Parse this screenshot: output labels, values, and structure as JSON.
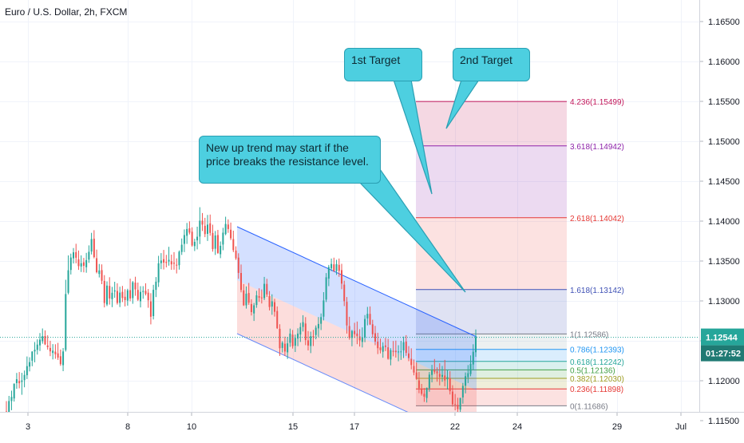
{
  "symbol": {
    "title": "Euro / U.S. Dollar, 2h, FXCM"
  },
  "callouts": [
    {
      "text": "1st Target"
    },
    {
      "text": "2nd Target"
    },
    {
      "text": "New up trend may start if the price breaks the resistance level."
    }
  ],
  "price_scale": {
    "ticks": [
      "1.16500",
      "1.16000",
      "1.15500",
      "1.15000",
      "1.14500",
      "1.14000",
      "1.13500",
      "1.13000",
      "1.12500",
      "1.12000",
      "1.11500"
    ],
    "current_price": "1.12544",
    "countdown": "01:27:52"
  },
  "time_scale": {
    "ticks": [
      "3",
      "8",
      "10",
      "15",
      "17",
      "22",
      "24",
      "29",
      "Jul"
    ]
  },
  "colors": {
    "up": "#26a69a",
    "down": "#ef5350",
    "channel_upper": "#2962ff",
    "channel_lower": "#ef5350",
    "callout": "#4dcfe0",
    "price_label": "#26a69a",
    "countdown_label": "#1f7a73"
  },
  "chart_data": {
    "type": "candlestick",
    "x_ticks": [
      "3",
      "8",
      "10",
      "15",
      "17",
      "22",
      "24",
      "29",
      "Jul"
    ],
    "y_ticks": [
      1.165,
      1.16,
      1.155,
      1.15,
      1.145,
      1.14,
      1.135,
      1.13,
      1.125,
      1.12,
      1.115
    ],
    "ylim": [
      1.11,
      1.168
    ],
    "last_price": 1.12544,
    "fib_levels": [
      {
        "ratio": 0,
        "price": 1.11686,
        "label": "0(1.11686)",
        "color": "#787b86"
      },
      {
        "ratio": 0.236,
        "price": 1.11898,
        "label": "0.236(1.11898)",
        "color": "#e53935"
      },
      {
        "ratio": 0.382,
        "price": 1.1203,
        "label": "0.382(1.12030)",
        "color": "#9e9d24"
      },
      {
        "ratio": 0.5,
        "price": 1.12136,
        "label": "0.5(1.12136)",
        "color": "#43a047"
      },
      {
        "ratio": 0.618,
        "price": 1.12242,
        "label": "0.618(1.12242)",
        "color": "#26a69a"
      },
      {
        "ratio": 0.786,
        "price": 1.12393,
        "label": "0.786(1.12393)",
        "color": "#2196f3"
      },
      {
        "ratio": 1,
        "price": 1.12586,
        "label": "1(1.12586)",
        "color": "#787b86"
      },
      {
        "ratio": 1.618,
        "price": 1.13142,
        "label": "1.618(1.13142)",
        "color": "#3f51b5"
      },
      {
        "ratio": 2.618,
        "price": 1.14042,
        "label": "2.618(1.14042)",
        "color": "#e53935"
      },
      {
        "ratio": 3.618,
        "price": 1.14942,
        "label": "3.618(1.14942)",
        "color": "#8e24aa"
      },
      {
        "ratio": 4.236,
        "price": 1.15499,
        "label": "4.236(1.15499)",
        "color": "#c2185b"
      }
    ],
    "channel": {
      "upper": [
        {
          "x": 297,
          "y": 1.1393
        },
        {
          "x": 597,
          "y": 1.1255
        }
      ],
      "middle": [
        {
          "x": 297,
          "y": 1.1326
        },
        {
          "x": 597,
          "y": 1.1188
        }
      ],
      "lower": [
        {
          "x": 297,
          "y": 1.1259
        },
        {
          "x": 597,
          "y": 1.1121
        }
      ]
    },
    "ohlc": [
      [
        1.11615,
        1.11745,
        1.1142,
        1.1152
      ],
      [
        1.11516,
        1.1181,
        1.11471,
        1.11746
      ],
      [
        1.11746,
        1.11876,
        1.11631,
        1.11797
      ],
      [
        1.11778,
        1.11964,
        1.11739,
        1.11965
      ],
      [
        1.11971,
        1.12098,
        1.11899,
        1.12019
      ],
      [
        1.11997,
        1.12109,
        1.11905,
        1.11969
      ],
      [
        1.11986,
        1.12099,
        1.11824,
        1.12003
      ],
      [
        1.12008,
        1.12128,
        1.11918,
        1.12073
      ],
      [
        1.12069,
        1.12304,
        1.12021,
        1.12183
      ],
      [
        1.12177,
        1.12294,
        1.12117,
        1.12233
      ],
      [
        1.12251,
        1.12369,
        1.12182,
        1.12366
      ],
      [
        1.12367,
        1.12485,
        1.12231,
        1.12388
      ],
      [
        1.12386,
        1.12519,
        1.12328,
        1.12453
      ],
      [
        1.12443,
        1.12597,
        1.12372,
        1.12515
      ],
      [
        1.12495,
        1.12655,
        1.12464,
        1.12558
      ],
      [
        1.1256,
        1.12631,
        1.12447,
        1.12456
      ],
      [
        1.12442,
        1.12569,
        1.12389,
        1.12421
      ],
      [
        1.12411,
        1.12501,
        1.12308,
        1.12368
      ],
      [
        1.12348,
        1.12459,
        1.12267,
        1.12377
      ],
      [
        1.12365,
        1.12457,
        1.12275,
        1.12332
      ],
      [
        1.12343,
        1.12475,
        1.12261,
        1.1229
      ],
      [
        1.12307,
        1.12391,
        1.12187,
        1.12208
      ],
      [
        1.12195,
        1.1241,
        1.1212,
        1.12367
      ],
      [
        1.12386,
        1.13265,
        1.12366,
        1.13086
      ],
      [
        1.13102,
        1.1357,
        1.13082,
        1.13384
      ],
      [
        1.13388,
        1.13593,
        1.13331,
        1.13544
      ],
      [
        1.13534,
        1.13663,
        1.13469,
        1.13609
      ],
      [
        1.13611,
        1.13716,
        1.13471,
        1.13541
      ],
      [
        1.13521,
        1.13632,
        1.13389,
        1.13436
      ],
      [
        1.13431,
        1.13571,
        1.13362,
        1.13472
      ],
      [
        1.13484,
        1.13539,
        1.13358,
        1.1344
      ],
      [
        1.13422,
        1.13602,
        1.13353,
        1.13511
      ],
      [
        1.13518,
        1.13696,
        1.13477,
        1.13615
      ],
      [
        1.13619,
        1.13853,
        1.13582,
        1.13775
      ],
      [
        1.13779,
        1.13886,
        1.13533,
        1.13549
      ],
      [
        1.13535,
        1.13643,
        1.13345,
        1.1336
      ],
      [
        1.13338,
        1.13463,
        1.13294,
        1.13382
      ],
      [
        1.13386,
        1.13458,
        1.1321,
        1.13253
      ],
      [
        1.1325,
        1.13323,
        1.12919,
        1.12974
      ],
      [
        1.12956,
        1.13245,
        1.12935,
        1.13192
      ],
      [
        1.13188,
        1.13297,
        1.12954,
        1.13031
      ],
      [
        1.13022,
        1.13176,
        1.12922,
        1.13102
      ],
      [
        1.13118,
        1.1324,
        1.13039,
        1.13132
      ],
      [
        1.13125,
        1.13221,
        1.12954,
        1.12975
      ],
      [
        1.12976,
        1.13178,
        1.12923,
        1.13104
      ],
      [
        1.13114,
        1.13188,
        1.12985,
        1.13037
      ],
      [
        1.13052,
        1.13147,
        1.12931,
        1.1301
      ],
      [
        1.13004,
        1.13152,
        1.12941,
        1.13133
      ],
      [
        1.13135,
        1.13279,
        1.12996,
        1.13031
      ],
      [
        1.13035,
        1.13249,
        1.12964,
        1.13234
      ],
      [
        1.13229,
        1.13303,
        1.13064,
        1.13145
      ],
      [
        1.13138,
        1.1323,
        1.12999,
        1.13015
      ],
      [
        1.12996,
        1.13185,
        1.12919,
        1.13113
      ],
      [
        1.13113,
        1.13185,
        1.13027,
        1.13124
      ],
      [
        1.13127,
        1.13221,
        1.13069,
        1.13089
      ],
      [
        1.13103,
        1.13149,
        1.12914,
        1.13008
      ],
      [
        1.12994,
        1.13097,
        1.12706,
        1.12802
      ],
      [
        1.1281,
        1.13202,
        1.12768,
        1.13139
      ],
      [
        1.13139,
        1.13299,
        1.13048,
        1.13241
      ],
      [
        1.13233,
        1.13565,
        1.13175,
        1.13471
      ],
      [
        1.13473,
        1.13599,
        1.13398,
        1.13506
      ],
      [
        1.13523,
        1.13639,
        1.13394,
        1.1348
      ],
      [
        1.13488,
        1.13577,
        1.1342,
        1.13476
      ],
      [
        1.13494,
        1.13678,
        1.13442,
        1.13515
      ],
      [
        1.13497,
        1.1358,
        1.1339,
        1.13458
      ],
      [
        1.13478,
        1.13611,
        1.13391,
        1.13467
      ],
      [
        1.13453,
        1.13533,
        1.13344,
        1.13452
      ],
      [
        1.13447,
        1.13632,
        1.13392,
        1.13616
      ],
      [
        1.13613,
        1.13782,
        1.13576,
        1.13704
      ],
      [
        1.13715,
        1.13896,
        1.13612,
        1.13825
      ],
      [
        1.13816,
        1.13977,
        1.13714,
        1.13901
      ],
      [
        1.13909,
        1.13997,
        1.13833,
        1.13856
      ],
      [
        1.13867,
        1.13922,
        1.1368,
        1.13695
      ],
      [
        1.13687,
        1.13779,
        1.13625,
        1.1374
      ],
      [
        1.13759,
        1.1393,
        1.13646,
        1.13804
      ],
      [
        1.13806,
        1.14174,
        1.13712,
        1.14005
      ],
      [
        1.14005,
        1.14101,
        1.13876,
        1.13956
      ],
      [
        1.13941,
        1.14041,
        1.13799,
        1.13837
      ],
      [
        1.1384,
        1.14078,
        1.13751,
        1.13956
      ],
      [
        1.13972,
        1.14082,
        1.13817,
        1.13852
      ],
      [
        1.13851,
        1.13955,
        1.13617,
        1.13649
      ],
      [
        1.13654,
        1.13876,
        1.13576,
        1.1382
      ],
      [
        1.13825,
        1.1389,
        1.13589,
        1.13601
      ],
      [
        1.13585,
        1.13745,
        1.13536,
        1.13691
      ],
      [
        1.13706,
        1.13916,
        1.13635,
        1.13855
      ],
      [
        1.13838,
        1.14055,
        1.13823,
        1.13964
      ],
      [
        1.13957,
        1.14021,
        1.13853,
        1.13901
      ],
      [
        1.13892,
        1.13982,
        1.13762,
        1.13785
      ],
      [
        1.13775,
        1.1388,
        1.13611,
        1.13636
      ],
      [
        1.13631,
        1.13684,
        1.13514,
        1.13534
      ],
      [
        1.13543,
        1.13597,
        1.13277,
        1.13351
      ],
      [
        1.1335,
        1.13456,
        1.13107,
        1.13137
      ],
      [
        1.13132,
        1.13211,
        1.12937,
        1.12945
      ],
      [
        1.12945,
        1.13182,
        1.12904,
        1.13091
      ],
      [
        1.13099,
        1.13225,
        1.12951,
        1.12978
      ],
      [
        1.12961,
        1.13021,
        1.12817,
        1.1286
      ],
      [
        1.12843,
        1.12975,
        1.12749,
        1.12945
      ],
      [
        1.12949,
        1.13127,
        1.12914,
        1.1307
      ],
      [
        1.1306,
        1.13158,
        1.12988,
        1.1304
      ],
      [
        1.13043,
        1.13144,
        1.12968,
        1.13036
      ],
      [
        1.13035,
        1.13301,
        1.1301,
        1.13214
      ],
      [
        1.13213,
        1.13277,
        1.1305,
        1.13081
      ],
      [
        1.1306,
        1.13124,
        1.12881,
        1.12924
      ],
      [
        1.12929,
        1.13083,
        1.12826,
        1.12995
      ],
      [
        1.12984,
        1.13026,
        1.12804,
        1.12864
      ],
      [
        1.12874,
        1.12931,
        1.12649,
        1.12658
      ],
      [
        1.12651,
        1.12708,
        1.12311,
        1.12407
      ],
      [
        1.12411,
        1.12496,
        1.12354,
        1.12476
      ],
      [
        1.12464,
        1.12553,
        1.1231,
        1.12366
      ],
      [
        1.12356,
        1.12549,
        1.12273,
        1.12468
      ],
      [
        1.12476,
        1.12653,
        1.12425,
        1.12591
      ],
      [
        1.12576,
        1.12636,
        1.12403,
        1.12433
      ],
      [
        1.12439,
        1.12578,
        1.1236,
        1.12536
      ],
      [
        1.12529,
        1.12657,
        1.12433,
        1.12591
      ],
      [
        1.12579,
        1.12725,
        1.12486,
        1.12673
      ],
      [
        1.12674,
        1.12821,
        1.12617,
        1.12734
      ],
      [
        1.12717,
        1.12797,
        1.12446,
        1.12509
      ],
      [
        1.12506,
        1.12623,
        1.1238,
        1.12441
      ],
      [
        1.12435,
        1.12615,
        1.12346,
        1.12558
      ],
      [
        1.12558,
        1.12637,
        1.12435,
        1.12556
      ],
      [
        1.12573,
        1.12693,
        1.12519,
        1.12665
      ],
      [
        1.12656,
        1.12798,
        1.12551,
        1.12711
      ],
      [
        1.12714,
        1.12843,
        1.12635,
        1.12797
      ],
      [
        1.12803,
        1.1311,
        1.12756,
        1.13006
      ],
      [
        1.13017,
        1.13349,
        1.12986,
        1.13296
      ],
      [
        1.13279,
        1.13451,
        1.13185,
        1.13425
      ],
      [
        1.13407,
        1.13531,
        1.13374,
        1.13463
      ],
      [
        1.13458,
        1.13542,
        1.13363,
        1.13374
      ],
      [
        1.13374,
        1.13515,
        1.13326,
        1.13461
      ],
      [
        1.13452,
        1.13531,
        1.13302,
        1.13376
      ],
      [
        1.13386,
        1.13465,
        1.13147,
        1.13217
      ],
      [
        1.13204,
        1.13253,
        1.12935,
        1.12997
      ],
      [
        1.12989,
        1.13049,
        1.12591,
        1.12693
      ],
      [
        1.12685,
        1.12801,
        1.12514,
        1.12538
      ],
      [
        1.12536,
        1.12638,
        1.12432,
        1.12624
      ],
      [
        1.12625,
        1.12726,
        1.12536,
        1.12583
      ],
      [
        1.12592,
        1.12742,
        1.12458,
        1.12558
      ],
      [
        1.12556,
        1.12646,
        1.12428,
        1.12506
      ],
      [
        1.12486,
        1.12668,
        1.12417,
        1.12545
      ],
      [
        1.1254,
        1.12823,
        1.12483,
        1.12774
      ],
      [
        1.12781,
        1.12925,
        1.12694,
        1.12838
      ],
      [
        1.12838,
        1.12931,
        1.12698,
        1.12705
      ],
      [
        1.12707,
        1.12764,
        1.12539,
        1.12582
      ],
      [
        1.12595,
        1.12688,
        1.12445,
        1.1249
      ],
      [
        1.1249,
        1.12601,
        1.12334,
        1.12408
      ],
      [
        1.12417,
        1.12527,
        1.12343,
        1.12383
      ],
      [
        1.12363,
        1.12482,
        1.12288,
        1.12433
      ],
      [
        1.12441,
        1.12537,
        1.12371,
        1.12424
      ],
      [
        1.12419,
        1.12525,
        1.12264,
        1.12275
      ],
      [
        1.12266,
        1.12408,
        1.12193,
        1.12383
      ],
      [
        1.12374,
        1.12498,
        1.12306,
        1.12362
      ],
      [
        1.12375,
        1.12503,
        1.1229,
        1.12359
      ],
      [
        1.12364,
        1.12445,
        1.12244,
        1.12366
      ],
      [
        1.12358,
        1.12499,
        1.12261,
        1.12367
      ],
      [
        1.1238,
        1.12553,
        1.12284,
        1.12483
      ],
      [
        1.12491,
        1.12571,
        1.12312,
        1.12349
      ],
      [
        1.12342,
        1.12434,
        1.12245,
        1.12284
      ],
      [
        1.12275,
        1.12406,
        1.12143,
        1.12197
      ],
      [
        1.12184,
        1.12266,
        1.12068,
        1.12103
      ],
      [
        1.12103,
        1.12231,
        1.12012,
        1.12023
      ],
      [
        1.12004,
        1.12109,
        1.11844,
        1.11907
      ],
      [
        1.11902,
        1.1196,
        1.11814,
        1.11836
      ],
      [
        1.11836,
        1.11909,
        1.11735,
        1.11801
      ],
      [
        1.11784,
        1.11914,
        1.11727,
        1.11912
      ],
      [
        1.11906,
        1.12109,
        1.11862,
        1.12077
      ],
      [
        1.12073,
        1.12199,
        1.1198,
        1.12129
      ],
      [
        1.12142,
        1.12272,
        1.12085,
        1.12112
      ],
      [
        1.12118,
        1.12168,
        1.11988,
        1.12094
      ],
      [
        1.12085,
        1.12219,
        1.11942,
        1.12048
      ],
      [
        1.1205,
        1.12185,
        1.11986,
        1.12073
      ],
      [
        1.12066,
        1.12261,
        1.11929,
        1.12004
      ],
      [
        1.12019,
        1.12139,
        1.1189,
        1.12046
      ],
      [
        1.12032,
        1.1212,
        1.11828,
        1.11869
      ],
      [
        1.11864,
        1.11944,
        1.11675,
        1.11705
      ],
      [
        1.11707,
        1.11834,
        1.1163,
        1.11697
      ],
      [
        1.11698,
        1.11787,
        1.11588,
        1.11644
      ],
      [
        1.11638,
        1.11785,
        1.11595,
        1.11786
      ],
      [
        1.11791,
        1.11973,
        1.11713,
        1.11936
      ],
      [
        1.11937,
        1.12104,
        1.11842,
        1.12057
      ],
      [
        1.12045,
        1.12196,
        1.11971,
        1.12095
      ],
      [
        1.12084,
        1.12317,
        1.12056,
        1.12211
      ],
      [
        1.12204,
        1.12457,
        1.12135,
        1.12363
      ],
      [
        1.12357,
        1.12643,
        1.12299,
        1.12544
      ]
    ]
  }
}
